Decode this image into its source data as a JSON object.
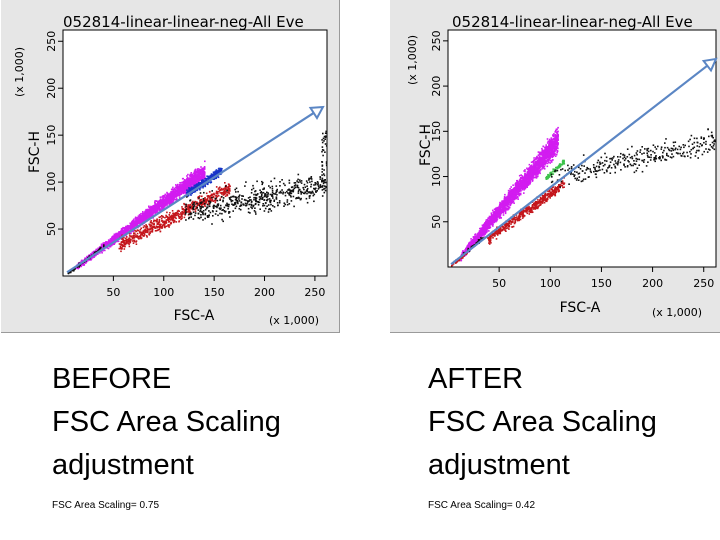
{
  "colors": {
    "background": "#ffffff",
    "panel": "#e6e6e6",
    "plot": "#ffffff",
    "arrow": "#5b86c4",
    "magenta": "#d21cf0",
    "red": "#c4161c",
    "blue": "#1734c8",
    "black": "#111111",
    "green": "#3cc24a"
  },
  "chart_data": [
    {
      "type": "scatter",
      "title": "052814-linear-linear-neg-All Eve",
      "xlabel": "FSC-A",
      "ylabel": "FSC-H",
      "x_multiplier": "(x 1,000)",
      "y_multiplier": "(x 1,000)",
      "xlim": [
        0,
        262
      ],
      "ylim": [
        0,
        262
      ],
      "x_ticks": [
        50,
        100,
        150,
        200,
        250
      ],
      "y_ticks": [
        50,
        100,
        150,
        200,
        250
      ],
      "grid": false,
      "populations": [
        {
          "color": "magenta",
          "description_ref": "main",
          "x_range": [
            10,
            140
          ],
          "slope_approx": 0.78
        },
        {
          "color": "red",
          "x_range": [
            60,
            160
          ],
          "slope_approx": 0.5
        },
        {
          "color": "blue",
          "x_range": [
            125,
            155
          ],
          "slope_approx": 0.72
        },
        {
          "color": "black",
          "x_range": [
            5,
            262
          ],
          "slope_approx": 0.65
        }
      ],
      "arrow": {
        "from": [
          4,
          4
        ],
        "to": [
          258,
          180
        ]
      }
    },
    {
      "type": "scatter",
      "title": "052814-linear-linear-neg-All Eve",
      "xlabel": "FSC-A",
      "ylabel": "FSC-H",
      "x_multiplier": "(x 1,000)",
      "y_multiplier": "(x 1,000)",
      "xlim": [
        0,
        262
      ],
      "ylim": [
        0,
        262
      ],
      "x_ticks": [
        50,
        100,
        150,
        200,
        250
      ],
      "y_ticks": [
        50,
        100,
        150,
        200,
        250
      ],
      "grid": false,
      "populations": [
        {
          "color": "magenta",
          "x_range": [
            10,
            105
          ],
          "slope_approx": 1.35
        },
        {
          "color": "red",
          "x_range": [
            40,
            110
          ],
          "slope_approx": 0.85
        },
        {
          "color": "green",
          "x_range": [
            95,
            115
          ],
          "slope_approx": 1.05
        },
        {
          "color": "black",
          "x_range": [
            5,
            262
          ],
          "slope_approx": 0.9
        }
      ],
      "arrow": {
        "from": [
          3,
          3
        ],
        "to": [
          262,
          230
        ]
      }
    }
  ],
  "captions": {
    "before": {
      "line1": "BEFORE",
      "line2": "FSC Area Scaling",
      "line3": "adjustment",
      "note": "FSC Area Scaling= 0.75"
    },
    "after": {
      "line1": "AFTER",
      "line2": "FSC Area Scaling",
      "line3": "adjustment",
      "note": "FSC Area Scaling= 0.42"
    }
  }
}
